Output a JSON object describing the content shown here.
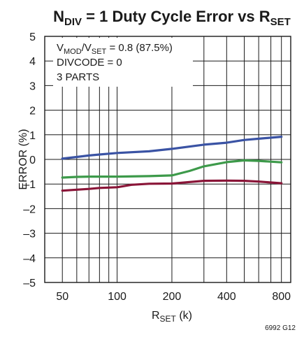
{
  "chart_data": {
    "type": "line",
    "title": {
      "prefix": "N",
      "prefix_sub": "DIV",
      "middle": " = 1 Duty Cycle Error vs R",
      "suffix_sub": "SET"
    },
    "xlabel": {
      "main": "R",
      "sub": "SET",
      "tail": " (k)"
    },
    "ylabel": "ERROR (%)",
    "x_scale": "log",
    "xlim": [
      40,
      900
    ],
    "ylim": [
      -5,
      5
    ],
    "x_ticks": [
      50,
      100,
      200,
      400,
      800
    ],
    "x_tick_labels": [
      "50",
      "100",
      "200",
      "400",
      "800"
    ],
    "y_ticks": [
      5,
      4,
      3,
      2,
      1,
      0,
      -1,
      -2,
      -3,
      -4,
      -5
    ],
    "y_tick_labels": [
      "5",
      "4",
      "3",
      "2",
      "1",
      "0",
      "–1",
      "–2",
      "–3",
      "–4",
      "–5"
    ],
    "x_gridlines": [
      50,
      60,
      70,
      80,
      90,
      100,
      200,
      300,
      400,
      500,
      600,
      700,
      800
    ],
    "grid": true,
    "annotation": {
      "line1": {
        "a": "V",
        "a_sub": "MOD",
        "b": "/V",
        "b_sub": "SET",
        "c": " = 0.8 (87.5%)"
      },
      "line2": "DIVCODE = 0",
      "line3": "3 PARTS"
    },
    "figure_code": "6992 G12",
    "series": [
      {
        "color": "#3a53a4",
        "x": [
          50,
          60,
          70,
          80,
          100,
          150,
          200,
          300,
          400,
          500,
          600,
          800
        ],
        "y": [
          0.03,
          0.1,
          0.16,
          0.2,
          0.26,
          0.33,
          0.43,
          0.6,
          0.68,
          0.79,
          0.84,
          0.92
        ]
      },
      {
        "color": "#3d9a4a",
        "x": [
          50,
          60,
          70,
          80,
          100,
          150,
          200,
          250,
          300,
          400,
          500,
          600,
          800
        ],
        "y": [
          -0.74,
          -0.71,
          -0.7,
          -0.7,
          -0.7,
          -0.68,
          -0.65,
          -0.47,
          -0.28,
          -0.11,
          -0.04,
          -0.06,
          -0.12
        ]
      },
      {
        "color": "#8a1538",
        "x": [
          50,
          60,
          70,
          80,
          100,
          120,
          150,
          200,
          300,
          400,
          500,
          600,
          800
        ],
        "y": [
          -1.27,
          -1.23,
          -1.2,
          -1.16,
          -1.13,
          -1.03,
          -0.99,
          -0.98,
          -0.87,
          -0.86,
          -0.87,
          -0.9,
          -0.97
        ]
      }
    ]
  }
}
